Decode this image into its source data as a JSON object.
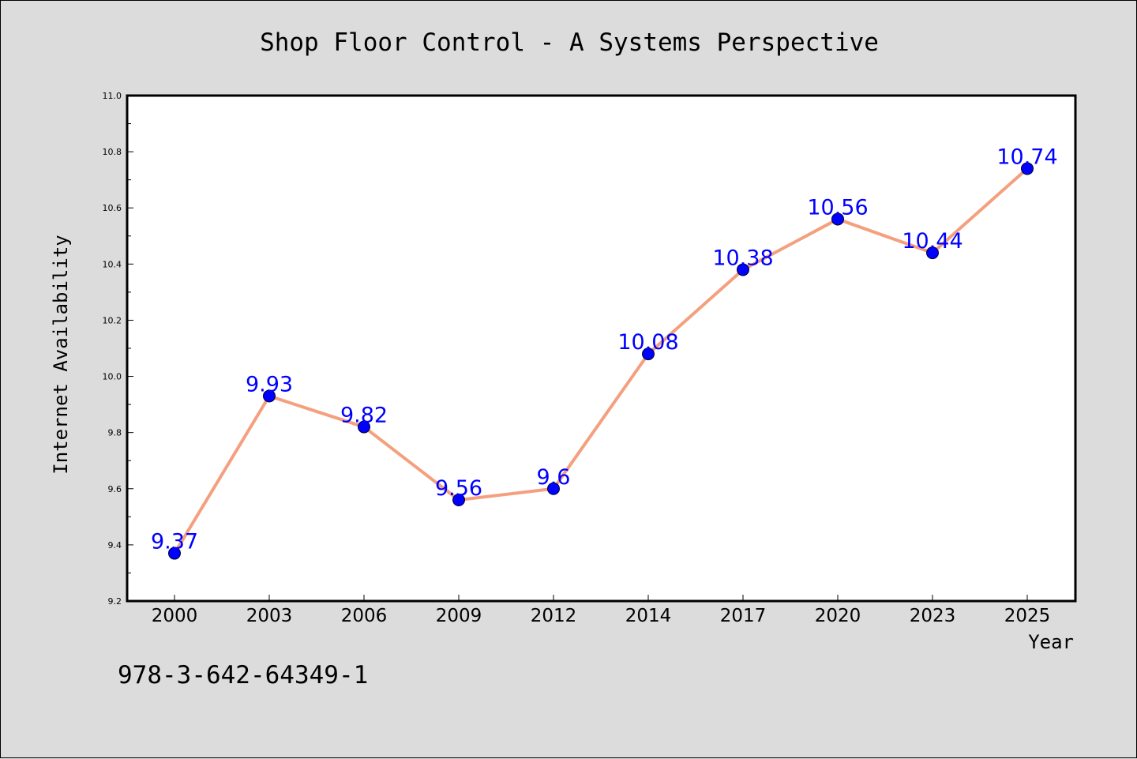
{
  "chart_data": {
    "type": "line",
    "title": "Shop Floor Control - A Systems Perspective",
    "xlabel": "Year",
    "ylabel": "Internet Availability",
    "categories": [
      "2000",
      "2003",
      "2006",
      "2009",
      "2012",
      "2014",
      "2017",
      "2020",
      "2023",
      "2025"
    ],
    "series": [
      {
        "values": [
          9.37,
          9.93,
          9.82,
          9.56,
          9.6,
          10.08,
          10.38,
          10.56,
          10.44,
          10.74
        ],
        "labels": [
          "9.37",
          "9.93",
          "9.82",
          "9.56",
          "9.6",
          "10.08",
          "10.38",
          "10.56",
          "10.44",
          "10.74"
        ]
      }
    ],
    "ylim": [
      9.2,
      11.0
    ],
    "yticks": [
      "9.2",
      "9.4",
      "9.6",
      "9.8",
      "10.0",
      "10.2",
      "10.4",
      "10.6",
      "10.8",
      "11.0"
    ],
    "grid": false,
    "legend": "none",
    "colors": {
      "line": "#f4a07e",
      "marker": "#0000ff",
      "marker_edge": "#000033",
      "data_label": "#0000ff",
      "background": "#dcdcdc",
      "plot_background": "#ffffff"
    }
  },
  "footnote": "978-3-642-64349-1"
}
